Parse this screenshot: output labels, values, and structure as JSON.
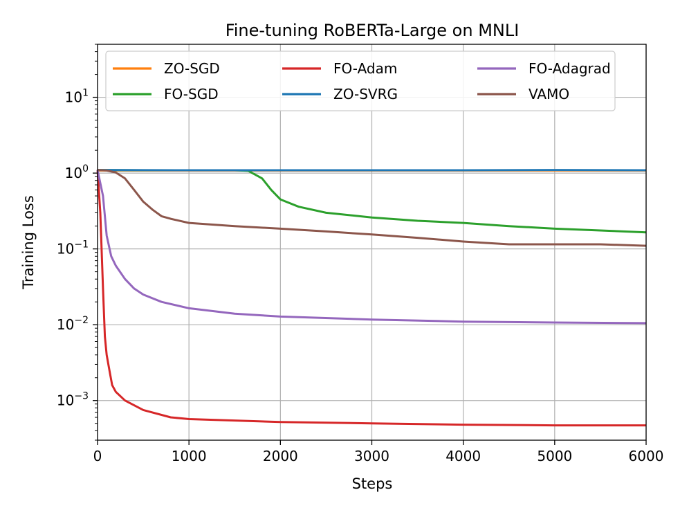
{
  "chart_data": {
    "type": "line",
    "title": "Fine-tuning RoBERTa-Large on MNLI",
    "xlabel": "Steps",
    "ylabel": "Training Loss",
    "yscale": "log",
    "xlim": [
      0,
      6000
    ],
    "ylim": [
      0.0003,
      50
    ],
    "xticks": [
      0,
      1000,
      2000,
      3000,
      4000,
      5000,
      6000
    ],
    "xtick_labels": [
      "0",
      "1000",
      "2000",
      "3000",
      "4000",
      "5000",
      "6000"
    ],
    "yticks": [
      0.001,
      0.01,
      0.1,
      1,
      10
    ],
    "ytick_labels": [
      {
        "base": "10",
        "exp": "−3"
      },
      {
        "base": "10",
        "exp": "−2"
      },
      {
        "base": "10",
        "exp": "−1"
      },
      {
        "base": "10",
        "exp": "0"
      },
      {
        "base": "10",
        "exp": "1"
      }
    ],
    "grid": true,
    "legend_position": "top",
    "series": [
      {
        "name": "ZO-SGD",
        "color": "#ff7f0e",
        "x": [
          0,
          1000,
          2000,
          3000,
          4000,
          5000,
          6000
        ],
        "y": [
          1.08,
          1.08,
          1.08,
          1.08,
          1.08,
          1.08,
          1.08
        ]
      },
      {
        "name": "FO-SGD",
        "color": "#2ca02c",
        "x": [
          0,
          500,
          1000,
          1500,
          1650,
          1800,
          1900,
          2000,
          2200,
          2500,
          3000,
          3500,
          4000,
          4500,
          5000,
          5500,
          6000
        ],
        "y": [
          1.1,
          1.09,
          1.09,
          1.09,
          1.07,
          0.85,
          0.6,
          0.45,
          0.36,
          0.3,
          0.26,
          0.235,
          0.22,
          0.2,
          0.185,
          0.175,
          0.165
        ]
      },
      {
        "name": "FO-Adam",
        "color": "#d62728",
        "x": [
          0,
          30,
          60,
          80,
          100,
          130,
          160,
          200,
          300,
          500,
          800,
          1000,
          2000,
          3000,
          4000,
          5000,
          6000
        ],
        "y": [
          1.1,
          0.3,
          0.03,
          0.007,
          0.004,
          0.0025,
          0.0016,
          0.0013,
          0.001,
          0.00075,
          0.0006,
          0.00057,
          0.00052,
          0.0005,
          0.00048,
          0.00047,
          0.00047
        ]
      },
      {
        "name": "ZO-SVRG",
        "color": "#1f77b4",
        "x": [
          0,
          1000,
          2000,
          3000,
          4000,
          5000,
          6000
        ],
        "y": [
          1.1,
          1.09,
          1.09,
          1.09,
          1.09,
          1.1,
          1.09
        ]
      },
      {
        "name": "FO-Adagrad",
        "color": "#9467bd",
        "x": [
          0,
          60,
          100,
          150,
          200,
          300,
          400,
          500,
          700,
          1000,
          1500,
          2000,
          3000,
          4000,
          5000,
          6000
        ],
        "y": [
          1.1,
          0.5,
          0.15,
          0.08,
          0.06,
          0.04,
          0.03,
          0.025,
          0.02,
          0.0165,
          0.014,
          0.0128,
          0.0117,
          0.011,
          0.0107,
          0.0105
        ]
      },
      {
        "name": "VAMO",
        "color": "#8c564b",
        "x": [
          0,
          100,
          200,
          300,
          400,
          500,
          600,
          700,
          800,
          1000,
          1500,
          2000,
          2500,
          3000,
          3500,
          4000,
          4500,
          5000,
          5500,
          6000
        ],
        "y": [
          1.1,
          1.08,
          1.02,
          0.85,
          0.6,
          0.42,
          0.33,
          0.27,
          0.25,
          0.22,
          0.2,
          0.185,
          0.17,
          0.155,
          0.14,
          0.125,
          0.115,
          0.115,
          0.115,
          0.11
        ]
      }
    ]
  }
}
